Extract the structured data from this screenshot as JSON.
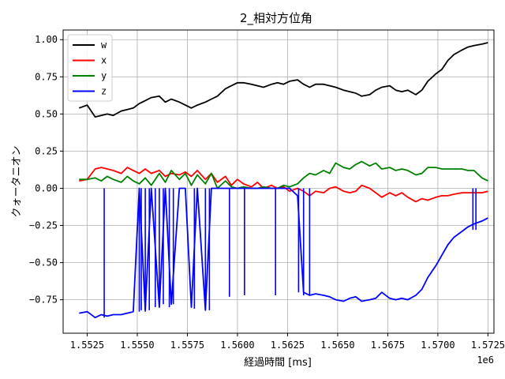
{
  "chart_data": {
    "type": "line",
    "title": "2_相対方位角",
    "xlabel": "経過時間 [ms]",
    "ylabel": "クォータニオン",
    "x_offset_label": "1e6",
    "xlim": [
      1.5513,
      1.5728
    ],
    "ylim": [
      -0.975,
      1.065
    ],
    "x_ticks": [
      1.5525,
      1.555,
      1.5575,
      1.56,
      1.5625,
      1.565,
      1.5675,
      1.57,
      1.5725
    ],
    "x_tick_labels": [
      "1.5525",
      "1.5550",
      "1.5575",
      "1.5600",
      "1.5625",
      "1.5650",
      "1.5675",
      "1.5700",
      "1.5725"
    ],
    "y_ticks": [
      1.0,
      0.75,
      0.5,
      0.25,
      0.0,
      -0.25,
      -0.5,
      -0.75
    ],
    "y_tick_labels": [
      "1.00",
      "0.75",
      "0.50",
      "0.25",
      "0.00",
      "−0.25",
      "−0.50",
      "−0.75"
    ],
    "grid": true,
    "legend_position": "top-left",
    "series": [
      {
        "name": "w",
        "color": "#000000",
        "x": [
          1.5521,
          1.5525,
          1.5529,
          1.5532,
          1.5535,
          1.5538,
          1.5542,
          1.5545,
          1.5548,
          1.5551,
          1.5554,
          1.5557,
          1.5561,
          1.5564,
          1.5567,
          1.5571,
          1.5574,
          1.5577,
          1.558,
          1.5584,
          1.5587,
          1.559,
          1.5594,
          1.5597,
          1.56,
          1.5603,
          1.5607,
          1.561,
          1.5613,
          1.5617,
          1.562,
          1.5623,
          1.5626,
          1.563,
          1.5633,
          1.5636,
          1.5639,
          1.5643,
          1.5646,
          1.5649,
          1.5653,
          1.5656,
          1.5659,
          1.5662,
          1.5666,
          1.5669,
          1.5672,
          1.5676,
          1.5679,
          1.5682,
          1.5685,
          1.5689,
          1.5692,
          1.5695,
          1.5699,
          1.5702,
          1.5705,
          1.5708,
          1.5712,
          1.5715,
          1.5718,
          1.5722,
          1.5725
        ],
        "y": [
          0.54,
          0.56,
          0.48,
          0.49,
          0.5,
          0.49,
          0.52,
          0.53,
          0.54,
          0.57,
          0.59,
          0.61,
          0.62,
          0.58,
          0.6,
          0.58,
          0.56,
          0.54,
          0.56,
          0.58,
          0.6,
          0.62,
          0.67,
          0.69,
          0.71,
          0.71,
          0.7,
          0.69,
          0.68,
          0.7,
          0.71,
          0.7,
          0.72,
          0.73,
          0.7,
          0.68,
          0.7,
          0.7,
          0.69,
          0.68,
          0.66,
          0.65,
          0.64,
          0.62,
          0.63,
          0.66,
          0.68,
          0.69,
          0.66,
          0.65,
          0.66,
          0.63,
          0.66,
          0.72,
          0.77,
          0.8,
          0.86,
          0.9,
          0.93,
          0.95,
          0.96,
          0.97,
          0.98
        ]
      },
      {
        "name": "x",
        "color": "#ff0000",
        "x": [
          1.5521,
          1.5525,
          1.5529,
          1.5532,
          1.5535,
          1.5538,
          1.5542,
          1.5545,
          1.5548,
          1.5551,
          1.5554,
          1.5557,
          1.5561,
          1.5564,
          1.5567,
          1.5571,
          1.5574,
          1.5577,
          1.558,
          1.5584,
          1.5587,
          1.559,
          1.5594,
          1.5597,
          1.56,
          1.5603,
          1.5607,
          1.561,
          1.5613,
          1.5617,
          1.562,
          1.5623,
          1.5626,
          1.563,
          1.5633,
          1.5636,
          1.5639,
          1.5643,
          1.5646,
          1.5649,
          1.5653,
          1.5656,
          1.5659,
          1.5662,
          1.5666,
          1.5669,
          1.5672,
          1.5676,
          1.5679,
          1.5682,
          1.5685,
          1.5689,
          1.5692,
          1.5695,
          1.5699,
          1.5702,
          1.5705,
          1.5708,
          1.5712,
          1.5715,
          1.5718,
          1.5722,
          1.5725
        ],
        "y": [
          0.05,
          0.06,
          0.13,
          0.14,
          0.13,
          0.12,
          0.1,
          0.14,
          0.12,
          0.1,
          0.13,
          0.1,
          0.12,
          0.08,
          0.1,
          0.09,
          0.11,
          0.08,
          0.12,
          0.06,
          0.1,
          0.04,
          0.08,
          0.02,
          0.06,
          0.03,
          0.01,
          0.04,
          0.0,
          0.02,
          0.0,
          0.01,
          -0.02,
          0.0,
          -0.02,
          -0.05,
          -0.02,
          -0.03,
          0.0,
          0.01,
          -0.02,
          -0.03,
          -0.02,
          0.02,
          0.0,
          -0.03,
          -0.06,
          -0.03,
          -0.05,
          -0.03,
          -0.06,
          -0.09,
          -0.07,
          -0.08,
          -0.06,
          -0.05,
          -0.05,
          -0.04,
          -0.03,
          -0.03,
          -0.03,
          -0.03,
          -0.02
        ]
      },
      {
        "name": "y",
        "color": "#008000",
        "x": [
          1.5521,
          1.5525,
          1.5529,
          1.5532,
          1.5535,
          1.5538,
          1.5542,
          1.5545,
          1.5548,
          1.5551,
          1.5554,
          1.5557,
          1.5561,
          1.5564,
          1.5567,
          1.5571,
          1.5574,
          1.5577,
          1.558,
          1.5584,
          1.5587,
          1.559,
          1.5594,
          1.5597,
          1.56,
          1.5603,
          1.5607,
          1.561,
          1.5613,
          1.5617,
          1.562,
          1.5623,
          1.5626,
          1.563,
          1.5633,
          1.5636,
          1.5639,
          1.5643,
          1.5646,
          1.5649,
          1.5653,
          1.5656,
          1.5659,
          1.5662,
          1.5666,
          1.5669,
          1.5672,
          1.5676,
          1.5679,
          1.5682,
          1.5685,
          1.5689,
          1.5692,
          1.5695,
          1.5699,
          1.5702,
          1.5705,
          1.5708,
          1.5712,
          1.5715,
          1.5718,
          1.5722,
          1.5725
        ],
        "y": [
          0.06,
          0.06,
          0.07,
          0.05,
          0.08,
          0.06,
          0.04,
          0.08,
          0.05,
          0.03,
          0.07,
          0.02,
          0.1,
          0.04,
          0.12,
          0.06,
          0.1,
          0.02,
          0.09,
          0.03,
          0.1,
          0.0,
          0.05,
          0.01,
          0.0,
          0.01,
          0.0,
          0.0,
          0.01,
          0.0,
          0.0,
          0.02,
          0.01,
          0.03,
          0.07,
          0.1,
          0.09,
          0.12,
          0.1,
          0.17,
          0.14,
          0.13,
          0.16,
          0.18,
          0.15,
          0.17,
          0.13,
          0.14,
          0.12,
          0.13,
          0.12,
          0.09,
          0.1,
          0.14,
          0.14,
          0.13,
          0.13,
          0.13,
          0.13,
          0.12,
          0.12,
          0.07,
          0.05
        ]
      },
      {
        "name": "z",
        "color": "#0000ff",
        "x": [
          1.5521,
          1.5525,
          1.5529,
          1.5532,
          1.5535,
          1.5538,
          1.5542,
          1.5545,
          1.5548,
          1.5551,
          1.5554,
          1.5557,
          1.5561,
          1.5564,
          1.5567,
          1.5571,
          1.5574,
          1.5577,
          1.558,
          1.5584,
          1.5587,
          1.559,
          1.5594,
          1.5597,
          1.56,
          1.5603,
          1.5607,
          1.561,
          1.5613,
          1.5617,
          1.562,
          1.5623,
          1.5626,
          1.563,
          1.5633,
          1.5636,
          1.5639,
          1.5643,
          1.5646,
          1.5649,
          1.5653,
          1.5656,
          1.5659,
          1.5662,
          1.5666,
          1.5669,
          1.5672,
          1.5676,
          1.5679,
          1.5682,
          1.5685,
          1.5689,
          1.5692,
          1.5695,
          1.5699,
          1.5702,
          1.5705,
          1.5708,
          1.5712,
          1.5715,
          1.5718,
          1.5722,
          1.5725
        ],
        "y": [
          -0.84,
          -0.83,
          -0.87,
          -0.85,
          -0.86,
          -0.85,
          -0.85,
          -0.84,
          -0.83,
          0.0,
          -0.82,
          0.0,
          -0.8,
          0.0,
          -0.78,
          0.0,
          0.0,
          -0.8,
          0.0,
          -0.82,
          0.0,
          0.0,
          0.0,
          0.0,
          0.0,
          0.0,
          0.0,
          0.0,
          0.0,
          0.0,
          0.0,
          0.0,
          0.0,
          -0.05,
          -0.7,
          -0.72,
          -0.71,
          -0.72,
          -0.73,
          -0.75,
          -0.76,
          -0.74,
          -0.73,
          -0.76,
          -0.75,
          -0.74,
          -0.7,
          -0.74,
          -0.75,
          -0.74,
          -0.75,
          -0.72,
          -0.68,
          -0.6,
          -0.52,
          -0.45,
          -0.38,
          -0.33,
          -0.29,
          -0.26,
          -0.24,
          -0.22,
          -0.2
        ]
      }
    ],
    "z_spikes": [
      {
        "x": 1.55335,
        "low": -0.87
      },
      {
        "x": 1.5551,
        "low": -0.83
      },
      {
        "x": 1.5552,
        "low": -0.82
      },
      {
        "x": 1.5554,
        "low": -0.83
      },
      {
        "x": 1.5556,
        "low": -0.82
      },
      {
        "x": 1.5559,
        "low": -0.8
      },
      {
        "x": 1.5561,
        "low": -0.78
      },
      {
        "x": 1.5563,
        "low": -0.78
      },
      {
        "x": 1.5566,
        "low": -0.8
      },
      {
        "x": 1.5568,
        "low": -0.78
      },
      {
        "x": 1.55785,
        "low": -0.81
      },
      {
        "x": 1.5584,
        "low": -0.82
      },
      {
        "x": 1.5586,
        "low": -0.82
      },
      {
        "x": 1.5596,
        "low": -0.73
      },
      {
        "x": 1.56035,
        "low": -0.72
      },
      {
        "x": 1.5619,
        "low": -0.72
      },
      {
        "x": 1.56305,
        "low": -0.7
      },
      {
        "x": 1.5633,
        "low": -0.72
      },
      {
        "x": 1.5636,
        "low": -0.72
      },
      {
        "x": 1.57175,
        "low": -0.28
      },
      {
        "x": 1.5719,
        "low": -0.28
      }
    ]
  }
}
